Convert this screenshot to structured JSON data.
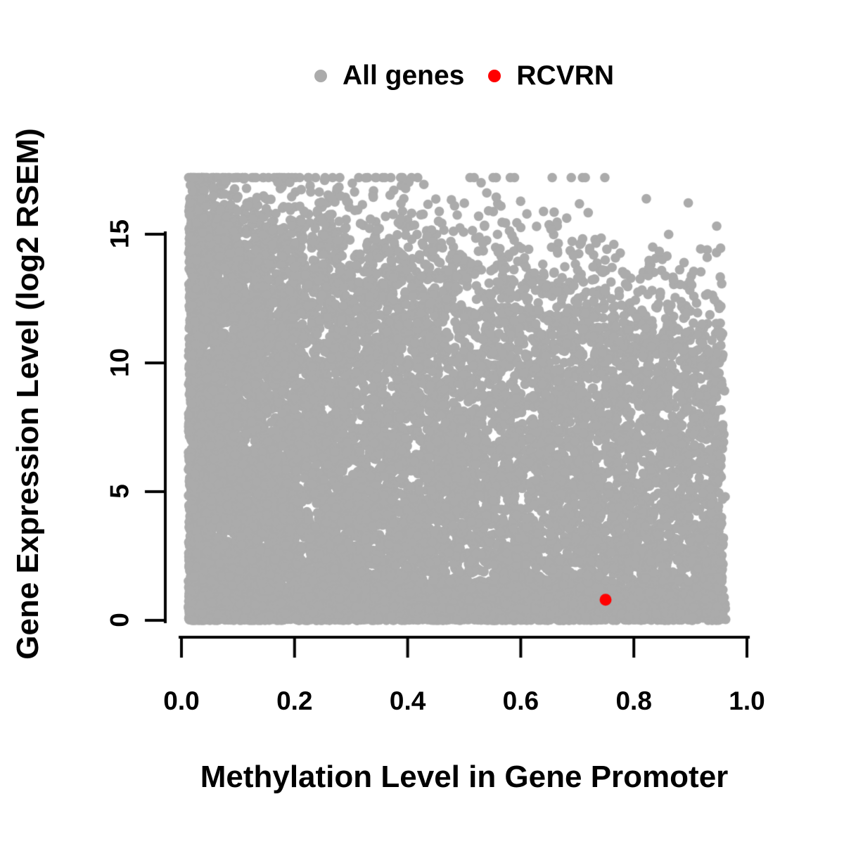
{
  "chart_data": {
    "type": "scatter",
    "title": "",
    "xlabel": "Methylation Level in Gene Promoter",
    "ylabel": "Gene Expression Level (log2 RSEM)",
    "xlim": [
      0,
      1
    ],
    "ylim": [
      0,
      17.5
    ],
    "grid": false,
    "legend_position": "top-center",
    "axis_color": "#000000",
    "background_color": "#ffffff",
    "xticks": {
      "values": [
        0,
        0.2,
        0.4,
        0.6,
        0.8,
        1.0
      ],
      "labels": [
        "0.0",
        "0.2",
        "0.4",
        "0.6",
        "0.8",
        "1.0"
      ]
    },
    "yticks": {
      "values": [
        0,
        5,
        10,
        15
      ],
      "labels": [
        "0",
        "5",
        "10",
        "15"
      ]
    },
    "legend": [
      {
        "label": "All genes",
        "color": "#ABABAB"
      },
      {
        "label": "RCVRN",
        "color": "#FF0000"
      }
    ],
    "series": [
      {
        "name": "All genes",
        "kind": "generated-cloud",
        "description": "Dense cloud of ~16k genes; methylation skewed toward 0 (dense solid column at 0.02-0.6, thinning to 0.96); expression fills 0 to an upper envelope that declines from ~15.2 at x=0 to ~11 at x=0.95, with sparse outliers up to ~17 and a solid band of near-zero expression across all methylation levels",
        "n": 16000,
        "seed": 7,
        "params": {
          "x_min": 0.015,
          "x_span": 0.945,
          "x_pow": 1.55,
          "x_jitter": 0.006,
          "env_a": 15.2,
          "env_b": 4.4,
          "env_noise": 0.7,
          "fill_pow": 1.35,
          "outlier_frac": 0.06,
          "outlier_scale": 1.25,
          "floor_frac": 0.13,
          "floor_sigma": 0.55,
          "y_max": 17.2
        },
        "marker_color": "#ABABAB",
        "marker_radius": 6.8
      },
      {
        "name": "RCVRN",
        "kind": "points",
        "points": [
          [
            0.75,
            0.8
          ]
        ],
        "marker_color": "#FF0000",
        "marker_radius": 8.5
      }
    ]
  }
}
